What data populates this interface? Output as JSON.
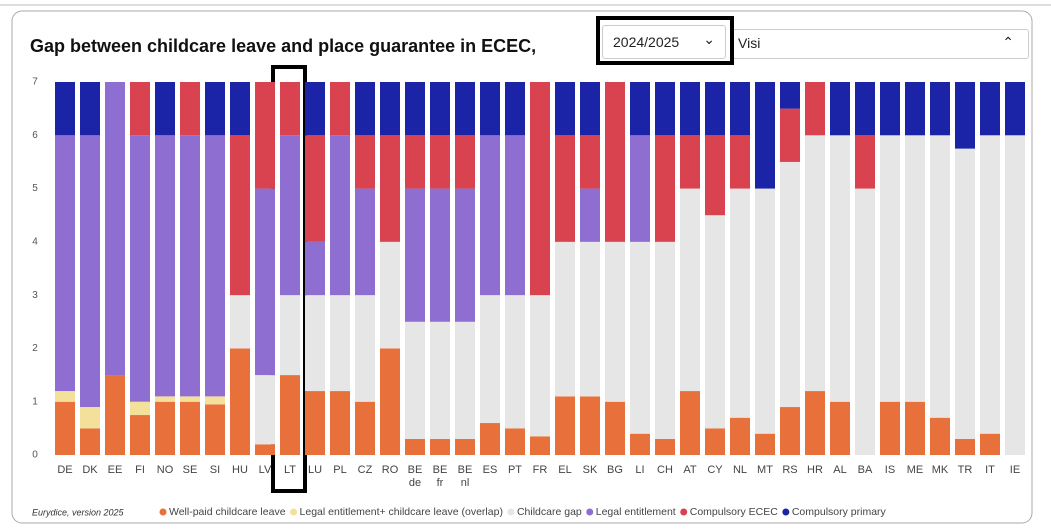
{
  "controls": {
    "year": "2024/2025",
    "second": "Visi"
  },
  "footer": "Eurydice, version 2025",
  "chart_data": {
    "type": "stacked_bar",
    "title": "Gap between childcare leave and place guarantee in ECEC,",
    "categories": [
      "DE",
      "DK",
      "EE",
      "FI",
      "NO",
      "SE",
      "SI",
      "HU",
      "LV",
      "LT",
      "LU",
      "PL",
      "CZ",
      "RO",
      "BE de",
      "BE fr",
      "BE nl",
      "ES",
      "PT",
      "FR",
      "EL",
      "SK",
      "BG",
      "LI",
      "CH",
      "AT",
      "CY",
      "NL",
      "MT",
      "RS",
      "HR",
      "AL",
      "BA",
      "IS",
      "ME",
      "MK",
      "TR",
      "IT",
      "IE"
    ],
    "ylim": [
      0,
      7
    ],
    "yticks": [
      0,
      1,
      2,
      3,
      4,
      5,
      6,
      7
    ],
    "grid": false,
    "series": [
      {
        "name": "Well-paid childcare leave",
        "color": "#e8703a",
        "values": [
          1.0,
          0.5,
          1.5,
          0.75,
          1.0,
          1.0,
          0.95,
          2.0,
          0.2,
          1.5,
          1.2,
          1.2,
          1.0,
          2.0,
          0.3,
          0.3,
          0.3,
          0.6,
          0.5,
          0.35,
          1.1,
          1.1,
          1.0,
          0.4,
          0.3,
          1.2,
          0.5,
          0.7,
          0.4,
          0.9,
          1.2,
          1.0,
          0,
          1.0,
          1.0,
          0.7,
          0.3,
          0.4,
          0
        ]
      },
      {
        "name": "Legal entitlement+ childcare leave (overlap)",
        "color": "#f3e09b",
        "values": [
          0.2,
          0.4,
          0,
          0.25,
          0.1,
          0.1,
          0.15,
          0,
          0,
          0,
          0,
          0,
          0,
          0,
          0,
          0,
          0,
          0,
          0,
          0,
          0,
          0,
          0,
          0,
          0,
          0,
          0,
          0,
          0,
          0,
          0,
          0,
          0,
          0,
          0,
          0,
          0,
          0,
          0
        ]
      },
      {
        "name": "Childcare gap",
        "color": "#e6e6e6",
        "values": [
          0,
          0,
          0,
          0,
          0,
          0,
          0,
          1.0,
          1.3,
          1.5,
          1.8,
          1.8,
          2.0,
          2.0,
          2.2,
          2.2,
          2.2,
          2.4,
          2.5,
          2.65,
          2.9,
          2.9,
          3.0,
          3.6,
          3.7,
          3.8,
          4.0,
          4.3,
          4.6,
          4.6,
          4.8,
          5.0,
          5.0,
          5.0,
          5.0,
          5.3,
          5.45,
          5.6,
          6.0
        ]
      },
      {
        "name": "Legal entitlement",
        "color": "#8e6fd1",
        "values": [
          4.8,
          5.1,
          5.5,
          5.0,
          4.9,
          4.9,
          4.9,
          0,
          3.5,
          3.0,
          1.0,
          3.0,
          2.0,
          0,
          2.5,
          2.5,
          2.5,
          3.0,
          3.0,
          0,
          0,
          1.0,
          0,
          2.0,
          0,
          0,
          0,
          0,
          0,
          0,
          0,
          0,
          0,
          0,
          0,
          0,
          0,
          0,
          0
        ]
      },
      {
        "name": "Compulsory ECEC",
        "color": "#d9424f",
        "values": [
          0,
          0,
          0,
          1.0,
          0,
          1.0,
          0,
          3.0,
          2.0,
          1.0,
          2.0,
          1.0,
          1.0,
          2.0,
          1.0,
          1.0,
          1.0,
          0,
          0,
          4.0,
          2.0,
          1.0,
          3.0,
          0,
          2.0,
          1.0,
          1.5,
          1.0,
          0,
          1.0,
          1.0,
          0,
          1.0,
          0,
          0,
          0,
          0,
          0,
          0
        ]
      },
      {
        "name": "Compulsory primary",
        "color": "#1b23a6",
        "values": [
          1,
          1,
          0,
          0,
          1,
          0,
          1,
          1,
          0,
          0,
          1,
          0,
          1,
          1,
          1,
          1,
          1,
          1,
          1,
          0,
          1,
          1,
          0,
          1,
          1,
          1,
          1,
          1,
          2,
          0.5,
          0,
          1,
          1,
          1,
          1,
          1,
          1.25,
          1,
          1
        ]
      }
    ]
  }
}
